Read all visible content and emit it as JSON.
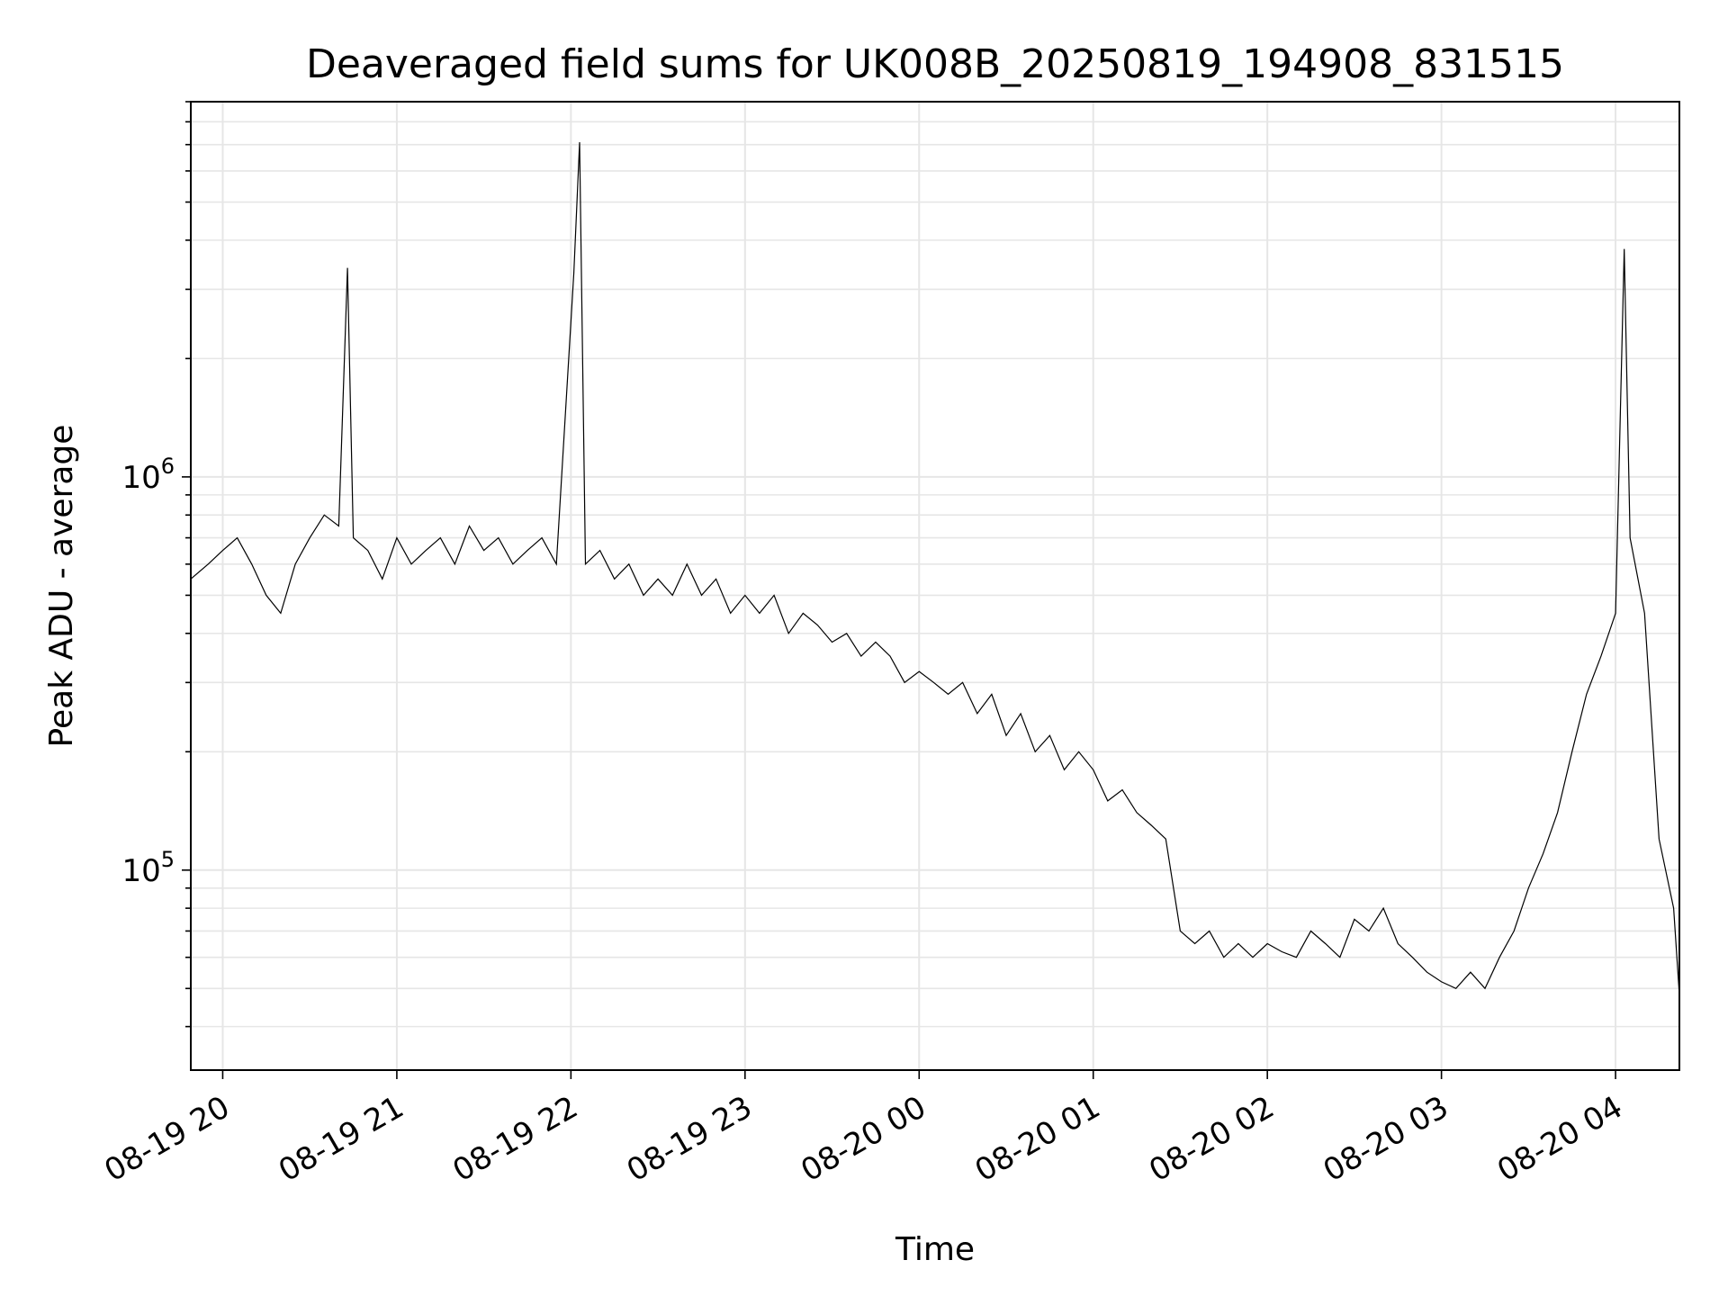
{
  "chart_data": {
    "type": "line",
    "title": "Deaveraged field sums for UK008B_20250819_194908_831515",
    "xlabel": "Time",
    "ylabel": "Peak ADU - average",
    "yscale": "log",
    "ylim": [
      31000,
      9000000
    ],
    "xlim": [
      "2025-08-19 19:49",
      "2025-08-20 04:22"
    ],
    "x_ticks": [
      {
        "value": "2025-08-19 20:00",
        "label": "08-19 20"
      },
      {
        "value": "2025-08-19 21:00",
        "label": "08-19 21"
      },
      {
        "value": "2025-08-19 22:00",
        "label": "08-19 22"
      },
      {
        "value": "2025-08-19 23:00",
        "label": "08-19 23"
      },
      {
        "value": "2025-08-20 00:00",
        "label": "08-20 00"
      },
      {
        "value": "2025-08-20 01:00",
        "label": "08-20 01"
      },
      {
        "value": "2025-08-20 02:00",
        "label": "08-20 02"
      },
      {
        "value": "2025-08-20 03:00",
        "label": "08-20 03"
      },
      {
        "value": "2025-08-20 04:00",
        "label": "08-20 04"
      }
    ],
    "y_ticks": [
      {
        "value": 100000,
        "base": "10",
        "exp": "5"
      },
      {
        "value": 1000000,
        "base": "10",
        "exp": "6"
      }
    ],
    "grid": true,
    "line_color": "#000000",
    "grid_color": "#e6e6e6",
    "series": [
      {
        "x": [
          "2025-08-19 19:49",
          "2025-08-19 19:55",
          "2025-08-19 20:00",
          "2025-08-19 20:05",
          "2025-08-19 20:10",
          "2025-08-19 20:15",
          "2025-08-19 20:20",
          "2025-08-19 20:25",
          "2025-08-19 20:30",
          "2025-08-19 20:35",
          "2025-08-19 20:40",
          "2025-08-19 20:43",
          "2025-08-19 20:45",
          "2025-08-19 20:50",
          "2025-08-19 20:55",
          "2025-08-19 21:00",
          "2025-08-19 21:05",
          "2025-08-19 21:10",
          "2025-08-19 21:15",
          "2025-08-19 21:20",
          "2025-08-19 21:25",
          "2025-08-19 21:30",
          "2025-08-19 21:35",
          "2025-08-19 21:40",
          "2025-08-19 21:45",
          "2025-08-19 21:50",
          "2025-08-19 21:55",
          "2025-08-19 22:01",
          "2025-08-19 22:03",
          "2025-08-19 22:05",
          "2025-08-19 22:10",
          "2025-08-19 22:15",
          "2025-08-19 22:20",
          "2025-08-19 22:25",
          "2025-08-19 22:30",
          "2025-08-19 22:35",
          "2025-08-19 22:40",
          "2025-08-19 22:45",
          "2025-08-19 22:50",
          "2025-08-19 22:55",
          "2025-08-19 23:00",
          "2025-08-19 23:05",
          "2025-08-19 23:10",
          "2025-08-19 23:15",
          "2025-08-19 23:20",
          "2025-08-19 23:25",
          "2025-08-19 23:30",
          "2025-08-19 23:35",
          "2025-08-19 23:40",
          "2025-08-19 23:45",
          "2025-08-19 23:50",
          "2025-08-19 23:55",
          "2025-08-20 00:00",
          "2025-08-20 00:05",
          "2025-08-20 00:10",
          "2025-08-20 00:15",
          "2025-08-20 00:20",
          "2025-08-20 00:25",
          "2025-08-20 00:30",
          "2025-08-20 00:35",
          "2025-08-20 00:40",
          "2025-08-20 00:45",
          "2025-08-20 00:50",
          "2025-08-20 00:55",
          "2025-08-20 01:00",
          "2025-08-20 01:05",
          "2025-08-20 01:10",
          "2025-08-20 01:15",
          "2025-08-20 01:20",
          "2025-08-20 01:25",
          "2025-08-20 01:30",
          "2025-08-20 01:35",
          "2025-08-20 01:40",
          "2025-08-20 01:45",
          "2025-08-20 01:50",
          "2025-08-20 01:55",
          "2025-08-20 02:00",
          "2025-08-20 02:05",
          "2025-08-20 02:10",
          "2025-08-20 02:15",
          "2025-08-20 02:20",
          "2025-08-20 02:25",
          "2025-08-20 02:30",
          "2025-08-20 02:35",
          "2025-08-20 02:40",
          "2025-08-20 02:45",
          "2025-08-20 02:50",
          "2025-08-20 02:55",
          "2025-08-20 03:00",
          "2025-08-20 03:05",
          "2025-08-20 03:10",
          "2025-08-20 03:15",
          "2025-08-20 03:20",
          "2025-08-20 03:25",
          "2025-08-20 03:30",
          "2025-08-20 03:35",
          "2025-08-20 03:40",
          "2025-08-20 03:45",
          "2025-08-20 03:50",
          "2025-08-20 03:55",
          "2025-08-20 04:00",
          "2025-08-20 04:03",
          "2025-08-20 04:05",
          "2025-08-20 04:10",
          "2025-08-20 04:15",
          "2025-08-20 04:20",
          "2025-08-20 04:22"
        ],
        "y": [
          550000,
          600000,
          650000,
          700000,
          600000,
          500000,
          450000,
          600000,
          700000,
          800000,
          750000,
          3400000,
          700000,
          650000,
          550000,
          700000,
          600000,
          650000,
          700000,
          600000,
          750000,
          650000,
          700000,
          600000,
          650000,
          700000,
          600000,
          3300000,
          7100000,
          600000,
          650000,
          550000,
          600000,
          500000,
          550000,
          500000,
          600000,
          500000,
          550000,
          450000,
          500000,
          450000,
          500000,
          400000,
          450000,
          420000,
          380000,
          400000,
          350000,
          380000,
          350000,
          300000,
          320000,
          300000,
          280000,
          300000,
          250000,
          280000,
          220000,
          250000,
          200000,
          220000,
          180000,
          200000,
          180000,
          150000,
          160000,
          140000,
          130000,
          120000,
          70000,
          65000,
          70000,
          60000,
          65000,
          60000,
          65000,
          62000,
          60000,
          70000,
          65000,
          60000,
          75000,
          70000,
          80000,
          65000,
          60000,
          55000,
          52000,
          50000,
          55000,
          50000,
          60000,
          70000,
          90000,
          110000,
          140000,
          200000,
          280000,
          350000,
          450000,
          3800000,
          700000,
          450000,
          120000,
          80000,
          48000
        ]
      }
    ]
  }
}
